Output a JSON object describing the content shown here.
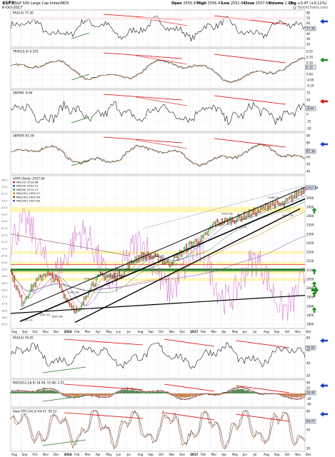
{
  "header": {
    "symbol": "$SPX",
    "name": "S&P 500 Large Cap Index",
    "exchange": "INDX",
    "date": "6-Oct-2017",
    "watermark": "@ StockCharts.com",
    "quote": {
      "open_label": "Open",
      "open": "2555.97",
      "high_label": "High",
      "high": "2556.47",
      "low_label": "Low",
      "low": "2551.84",
      "close_label": "Close",
      "close": "2557.64",
      "volume_label": "Volume",
      "volume": "1.1B",
      "chg_label": "Chg",
      "chg": "+0.47 (+0.11%)"
    }
  },
  "colors": {
    "price": "#000000",
    "up": "#1b7f1b",
    "down": "#cc0000",
    "trendline": "#e00000",
    "ma_blue": "#1f4fd0",
    "ma_red": "#d02020",
    "purple": "#c040c0",
    "yellow_band": "#fff4a8",
    "green_band": "#1e7a1e",
    "arrow_blue": "#1a3fd1",
    "arrow_green": "#228b22",
    "arrow_red": "#dd1111"
  },
  "panels": [
    {
      "id": "rsi",
      "label": "RSI(14) 77.30",
      "ticks": [
        "80",
        "70",
        "60",
        "50",
        "40",
        "30",
        "20"
      ],
      "last_value": "77.30",
      "arrow": "blue"
    },
    {
      "id": "trix",
      "label": "TRIX(15,9) 0.103",
      "ticks": [
        "0.25",
        "0.15",
        "0.10",
        "0.05",
        "0.00",
        "-0.05",
        "-0.10"
      ],
      "last_value": "0.10",
      "arrow": "green"
    },
    {
      "id": "bpi",
      "label": "$NYMO -6.64",
      "ticks": [
        "75",
        "50",
        "25",
        "0",
        "-25",
        "-50"
      ],
      "last_value": "-6.64",
      "arrow": "red"
    },
    {
      "id": "breadth",
      "label": "$BPSPX 63.39",
      "ticks": [
        "90",
        "80",
        "70",
        "60",
        "50",
        "40"
      ],
      "last_value": "63.39",
      "arrow": "blue"
    }
  ],
  "price_panel": {
    "label": "$SPX (Daily) 2557.64",
    "legend": [
      "MA(10) 2519.08",
      "MA(20) 2501.51",
      "MA(50) 2472.17",
      "MA(100) 2452.57",
      "MA(150) 2425.40",
      "MA(200) 2407.80"
    ],
    "last_value": "2557.64",
    "ticks": [
      "2550",
      "2500",
      "2450",
      "2400",
      "2350",
      "2300",
      "2250",
      "2200",
      "2150",
      "2100",
      "2050",
      "2000",
      "1950",
      "1900",
      "1850",
      "1800"
    ],
    "left_ticks": [
      "26.0",
      "25.5",
      "25.0",
      "24.5",
      "24.0",
      "23.5",
      "23.0",
      "22.5",
      "22.0",
      "21.5",
      "21.0",
      "20.5",
      "20.0",
      "19.5",
      "19.0",
      "18.5",
      "18.0",
      "17.5",
      "17.0",
      "16.5",
      "16.0",
      "15.5"
    ],
    "price_labels": [
      "1810.10",
      "1867.61",
      "1829.08",
      "1991.68",
      "2040.02",
      "2093.28",
      "2134.72",
      "2193.81",
      "2119.12",
      "2246.54",
      "2400.98",
      "2352.72",
      "2488.36",
      "2417.35"
    ]
  },
  "lower_panels": [
    {
      "id": "rsi2",
      "label": "RSI(14) 76.92",
      "ticks": [
        "80",
        "60",
        "40",
        "20"
      ],
      "last_value": "76.92"
    },
    {
      "id": "macd",
      "label": "MACD(12,26,9) 18.49, 15.98, 2.51",
      "ticks": [
        "40",
        "20",
        "0",
        "-20",
        "-40"
      ],
      "last_value": "18.49"
    },
    {
      "id": "sto",
      "label": "Slow STO (14,3) 94.47, 95.12",
      "ticks": [
        "80",
        "50",
        "20"
      ],
      "last_value": "94.47"
    }
  ],
  "x_axis": {
    "labels": [
      "Aug",
      "Sep",
      "Oct",
      "Nov",
      "Dec",
      "2016",
      "Feb",
      "Mar",
      "Apr",
      "May",
      "Jun",
      "Jul",
      "Aug",
      "Sep",
      "Oct",
      "Nov",
      "Dec",
      "2017",
      "Feb",
      "Mar",
      "Apr",
      "May",
      "Jun",
      "Jul",
      "Aug",
      "Sep",
      "Oct",
      "Nov",
      "Dec"
    ],
    "bold": [
      "2016",
      "2017"
    ]
  },
  "chart_data": {
    "type": "line",
    "title": "$SPX S&P 500 Large Cap Index INDX",
    "x_range": [
      "Aug 2015",
      "Dec 2017"
    ],
    "y_range": [
      1800,
      2600
    ],
    "series": [
      {
        "name": "$SPX (Daily)",
        "x": [
          "Aug 2015",
          "Sep 2015",
          "Oct 2015",
          "Nov 2015",
          "Dec 2015",
          "Jan 2016",
          "Feb 2016",
          "Mar 2016",
          "Apr 2016",
          "May 2016",
          "Jun 2016",
          "Jul 2016",
          "Aug 2016",
          "Sep 2016",
          "Oct 2016",
          "Nov 2016",
          "Dec 2016",
          "Jan 2017",
          "Feb 2017",
          "Mar 2017",
          "Apr 2017",
          "May 2017",
          "Jun 2017",
          "Jul 2017",
          "Aug 2017",
          "Sep 2017",
          "Oct 2017"
        ],
        "values": [
          2090,
          1920,
          2015,
          2085,
          2050,
          1930,
          1860,
          2010,
          2070,
          2060,
          2085,
          2165,
          2180,
          2165,
          2135,
          2195,
          2250,
          2275,
          2360,
          2370,
          2385,
          2410,
          2430,
          2470,
          2460,
          2510,
          2557
        ]
      }
    ]
  }
}
